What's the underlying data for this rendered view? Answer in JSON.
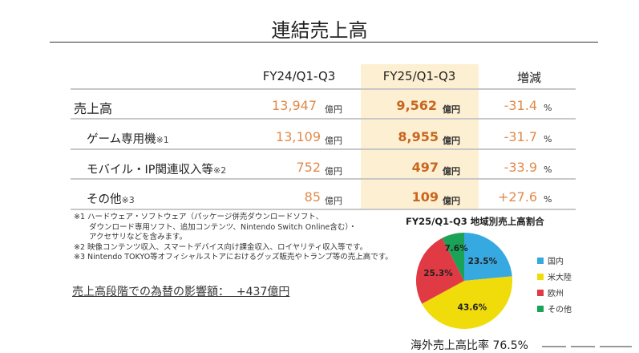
{
  "title": "連結売上高",
  "table": {
    "headers": [
      "FY24/Q1-Q3",
      "FY25/Q1-Q3",
      "増減"
    ],
    "rows": [
      {
        "label": "売上高",
        "note": "",
        "fy24": "13,947",
        "fy25": "9,562",
        "unit": "億円",
        "change": "-31.4",
        "pct": "%"
      },
      {
        "label": "ゲーム専用機",
        "note": "※1",
        "fy24": "13,109",
        "fy25": "8,955",
        "unit": "億円",
        "change": "-31.7",
        "pct": "%"
      },
      {
        "label": "モバイル・IP関連収入等",
        "note": "※2",
        "fy24": "752",
        "fy25": "497",
        "unit": "億円",
        "change": "-33.9",
        "pct": "%"
      },
      {
        "label": "その他",
        "note": "※3",
        "fy24": "85",
        "fy25": "109",
        "unit": "億円",
        "change": "+27.6",
        "pct": "%"
      }
    ]
  },
  "footnotes": [
    "※1 ハードウェア・ソフトウェア（パッケージ併売ダウンロードソフト、",
    "　　ダウンロード専用ソフト、追加コンテンツ、Nintendo Switch Online含む）・",
    "　　アクセサリなどを含みます。",
    "※2 映像コンテンツ収入、スマートデバイス向け課金収入、ロイヤリティ収入等です。",
    "※3 Nintendo TOKYO等オフィシャルストアにおけるグッズ販売やトランプ等の売上高です。"
  ],
  "fx_impact": "売上高段階での為替の影響額：  +437億円",
  "pie": {
    "title": "FY25/Q1-Q3 地域別売上高割合",
    "slices": [
      {
        "label": "国内",
        "value": 23.5,
        "text": "23.5%",
        "color": "#36a9e1"
      },
      {
        "label": "米大陸",
        "value": 43.6,
        "text": "43.6%",
        "color": "#f0dc0a"
      },
      {
        "label": "欧州",
        "value": 25.3,
        "text": "25.3%",
        "color": "#e03a45"
      },
      {
        "label": "その他",
        "value": 7.6,
        "text": "7.6%",
        "color": "#1aa257"
      }
    ]
  },
  "overseas_ratio": "海外売上高比率 76.5%"
}
